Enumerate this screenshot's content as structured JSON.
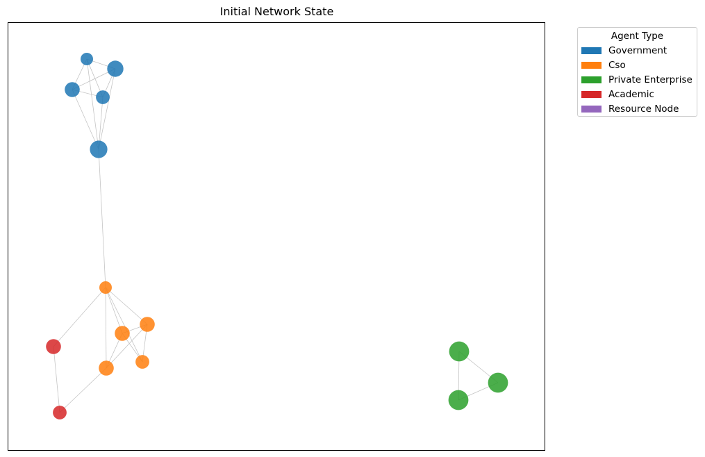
{
  "title": "Initial Network State",
  "legend": {
    "title": "Agent Type",
    "items": [
      {
        "label": "Government",
        "color": "#1f77b4"
      },
      {
        "label": "Cso",
        "color": "#ff7f0e"
      },
      {
        "label": "Private Enterprise",
        "color": "#2ca02c"
      },
      {
        "label": "Academic",
        "color": "#d62728"
      },
      {
        "label": "Resource Node",
        "color": "#9467bd"
      }
    ]
  },
  "nodes": [
    {
      "id": "g1",
      "type": "Government",
      "size": 1.0
    },
    {
      "id": "g2",
      "type": "Government",
      "size": 1.3
    },
    {
      "id": "g3",
      "type": "Government",
      "size": 1.2
    },
    {
      "id": "g4",
      "type": "Government",
      "size": 1.1
    },
    {
      "id": "g5",
      "type": "Government",
      "size": 1.4
    },
    {
      "id": "c1",
      "type": "Cso",
      "size": 1.0
    },
    {
      "id": "c2",
      "type": "Cso",
      "size": 1.2
    },
    {
      "id": "c3",
      "type": "Cso",
      "size": 1.2
    },
    {
      "id": "c4",
      "type": "Cso",
      "size": 1.1
    },
    {
      "id": "c5",
      "type": "Cso",
      "size": 1.2
    },
    {
      "id": "a1",
      "type": "Academic",
      "size": 1.2
    },
    {
      "id": "a2",
      "type": "Academic",
      "size": 1.1
    },
    {
      "id": "p1",
      "type": "Private Enterprise",
      "size": 1.6
    },
    {
      "id": "p2",
      "type": "Private Enterprise",
      "size": 1.6
    },
    {
      "id": "p3",
      "type": "Private Enterprise",
      "size": 1.6
    }
  ],
  "edges": [
    [
      "g1",
      "g2"
    ],
    [
      "g1",
      "g3"
    ],
    [
      "g1",
      "g4"
    ],
    [
      "g1",
      "g5"
    ],
    [
      "g2",
      "g3"
    ],
    [
      "g2",
      "g4"
    ],
    [
      "g2",
      "g5"
    ],
    [
      "g3",
      "g4"
    ],
    [
      "g3",
      "g5"
    ],
    [
      "g4",
      "g5"
    ],
    [
      "g5",
      "c1"
    ],
    [
      "c1",
      "c2"
    ],
    [
      "c1",
      "c3"
    ],
    [
      "c1",
      "c4"
    ],
    [
      "c1",
      "c5"
    ],
    [
      "c1",
      "a1"
    ],
    [
      "c2",
      "c3"
    ],
    [
      "c2",
      "c4"
    ],
    [
      "c2",
      "c5"
    ],
    [
      "c3",
      "c4"
    ],
    [
      "c3",
      "c5"
    ],
    [
      "c5",
      "a2"
    ],
    [
      "a1",
      "a2"
    ],
    [
      "p1",
      "p2"
    ],
    [
      "p1",
      "p3"
    ],
    [
      "p2",
      "p3"
    ]
  ]
}
